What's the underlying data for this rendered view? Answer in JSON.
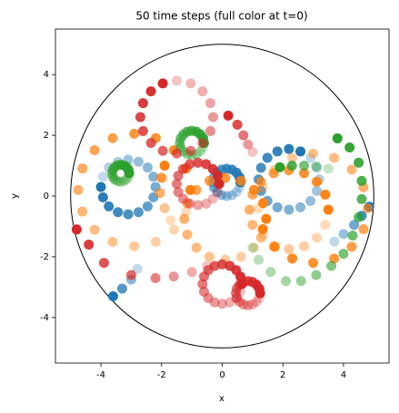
{
  "chart_data": {
    "type": "scatter",
    "title": "50 time steps (full color at t=0)",
    "x_label": "x",
    "y_label": "y",
    "xlim": [
      -5.5,
      5.5
    ],
    "ylim": [
      -5.5,
      5.5
    ],
    "xticks": [
      -4,
      -2,
      0,
      2,
      4
    ],
    "yticks": [
      -4,
      -2,
      0,
      2,
      4
    ],
    "circle": {
      "x": 0,
      "y": 0,
      "r": 5,
      "color": "#000000"
    },
    "series": [
      {
        "color": "#1f77b4",
        "x": [
          -4.0,
          -3.93,
          -3.74,
          -3.44,
          -3.1,
          -2.76,
          -2.46,
          -2.27,
          -2.2,
          -2.27,
          -2.46,
          -2.76,
          -3.1,
          -3.44,
          -3.74,
          -3.93
        ],
        "y": [
          0.3,
          -0.04,
          -0.34,
          -0.53,
          -0.6,
          -0.53,
          -0.34,
          -0.04,
          0.3,
          0.64,
          0.94,
          1.13,
          1.2,
          1.13,
          0.94,
          0.64
        ]
      },
      {
        "color": "#1f77b4",
        "x": [
          2.58,
          2.2,
          1.82,
          1.49,
          1.28,
          1.2,
          1.28,
          1.49,
          1.82,
          2.2,
          2.58,
          2.91,
          3.12,
          3.2,
          3.12,
          2.91
        ],
        "y": [
          1.47,
          1.55,
          1.47,
          1.26,
          0.93,
          0.55,
          0.17,
          -0.16,
          -0.37,
          -0.45,
          -0.37,
          -0.16,
          0.17,
          0.55,
          0.93,
          1.26
        ]
      },
      {
        "color": "#1f77b4",
        "x": [
          0.6,
          0.57,
          0.47,
          0.32,
          0.15,
          -0.02,
          -0.17,
          -0.27,
          -0.3,
          -0.27,
          -0.17,
          -0.02,
          0.15,
          0.32,
          0.47,
          0.57
        ],
        "y": [
          0.45,
          0.62,
          0.77,
          0.87,
          0.9,
          0.87,
          0.77,
          0.62,
          0.45,
          0.28,
          0.13,
          0.03,
          0,
          0.03,
          0.13,
          0.28
        ]
      },
      {
        "color": "#1f77b4",
        "x": [
          -3.6,
          -3.3,
          -3.0,
          -2.8
        ],
        "y": [
          -3.3,
          -3.05,
          -2.75,
          -2.4
        ]
      },
      {
        "color": "#1f77b4",
        "x": [
          4.85,
          4.6,
          4.35,
          4.0,
          3.7
        ],
        "y": [
          -0.35,
          -0.65,
          -0.95,
          -1.25,
          -1.5
        ]
      },
      {
        "color": "#ff7f0e",
        "x": [
          -1.05,
          -1.19,
          -1.59,
          -2.19,
          -2.9,
          -3.61,
          -4.21,
          -4.61,
          -4.75,
          -4.61,
          -4.21,
          -3.61,
          -2.9,
          -2.19,
          -1.59,
          -1.19
        ],
        "y": [
          0.2,
          0.91,
          1.51,
          1.91,
          2.05,
          1.91,
          1.51,
          0.91,
          0.2,
          -0.51,
          -1.11,
          -1.51,
          -1.65,
          -1.51,
          -1.11,
          -0.51
        ]
      },
      {
        "color": "#ff7f0e",
        "x": [
          1.45,
          1.35,
          1.05,
          0.62,
          0.1,
          -0.42,
          -0.85,
          -1.15,
          -1.25,
          -1.15,
          -0.85,
          -0.42,
          0.1,
          0.62,
          1.05,
          1.35
        ],
        "y": [
          -0.75,
          -0.23,
          0.2,
          0.5,
          0.6,
          0.5,
          0.2,
          -0.23,
          -0.75,
          -1.27,
          -1.7,
          -2.0,
          -2.1,
          -2.0,
          -1.7,
          -1.27
        ]
      },
      {
        "color": "#ff7f0e",
        "x": [
          3.5,
          3.4,
          3.12,
          2.7,
          2.2,
          1.7,
          1.28,
          1.0,
          0.9,
          1.0,
          1.28,
          1.7,
          2.2,
          2.7,
          3.12,
          3.4
        ],
        "y": [
          -0.45,
          0.05,
          0.47,
          0.75,
          0.85,
          0.75,
          0.47,
          0.05,
          -0.45,
          -0.95,
          -1.37,
          -1.65,
          -1.75,
          -1.65,
          -1.37,
          -0.95
        ]
      },
      {
        "color": "#ff7f0e",
        "x": [
          1.34,
          1.73,
          2.31,
          3.0,
          3.69,
          4.27,
          4.66,
          4.8,
          4.66,
          4.27,
          3.69,
          3.0,
          2.31,
          1.73,
          1.34,
          1.2
        ],
        "y": [
          -1.09,
          -1.67,
          -2.06,
          -2.2,
          -2.06,
          -1.67,
          -1.09,
          -0.4,
          0.29,
          0.87,
          1.26,
          1.4,
          1.26,
          0.87,
          0.29,
          -0.4
        ]
      },
      {
        "color": "#ff7f0e",
        "x": [
          -1.9,
          -2.0,
          -2.05,
          -1.9,
          -1.7
        ],
        "y": [
          1.0,
          0.6,
          0.1,
          -0.4,
          -0.8
        ]
      },
      {
        "color": "#2ca02c",
        "x": [
          3.8,
          4.2,
          4.5,
          4.6,
          4.6,
          4.5,
          4.3,
          4.0,
          3.6,
          3.1,
          2.6,
          2.1,
          1.6,
          1.2,
          1.0
        ],
        "y": [
          1.9,
          1.6,
          1.1,
          0.5,
          -0.1,
          -0.7,
          -1.3,
          -1.9,
          -2.3,
          -2.6,
          -2.8,
          -2.8,
          -2.5,
          -2.1,
          -1.7
        ]
      },
      {
        "color": "#2ca02c",
        "x": [
          1.9,
          2.3,
          2.7,
          3.1,
          3.5
        ],
        "y": [
          0.95,
          1.0,
          1.0,
          0.98,
          0.9
        ]
      },
      {
        "color": "#2ca02c",
        "x": [
          -0.6,
          -0.63,
          -0.72,
          -0.85,
          -1.0,
          -1.15,
          -1.28,
          -1.37,
          -1.4,
          -1.37,
          -1.28,
          -1.15,
          -1.0,
          -0.85,
          -0.72,
          -0.63
        ],
        "y": [
          1.75,
          1.9,
          2.03,
          2.12,
          2.15,
          2.12,
          2.03,
          1.9,
          1.75,
          1.6,
          1.47,
          1.38,
          1.35,
          1.38,
          1.47,
          1.6
        ]
      },
      {
        "color": "#2ca02c",
        "x": [
          -3.07,
          -3.09,
          -3.15,
          -3.24,
          -3.35,
          -3.46,
          -3.55,
          -3.61,
          -3.63,
          -3.61,
          -3.55,
          -3.46,
          -3.35,
          -3.24,
          -3.15,
          -3.09
        ],
        "y": [
          0.75,
          0.86,
          0.95,
          1.01,
          1.03,
          1.01,
          0.95,
          0.86,
          0.75,
          0.64,
          0.55,
          0.49,
          0.47,
          0.49,
          0.55,
          0.64
        ]
      },
      {
        "color": "#d62728",
        "x": [
          -1.96,
          -2.35,
          -2.61,
          -2.7,
          -2.61,
          -2.35,
          -1.96,
          -1.5,
          -1.04,
          -0.65,
          -0.39,
          -0.3,
          -0.39,
          -0.65,
          -1.04,
          -1.5
        ],
        "y": [
          3.71,
          3.45,
          3.06,
          2.6,
          2.14,
          1.75,
          1.49,
          1.4,
          1.49,
          1.75,
          2.14,
          2.6,
          3.06,
          3.45,
          3.71,
          3.8
        ]
      },
      {
        "color": "#d62728",
        "x": [
          -0.1,
          -0.15,
          -0.31,
          -0.53,
          -0.8,
          -1.07,
          -1.29,
          -1.45,
          -1.5,
          -1.45,
          -1.29,
          -1.07,
          -0.8,
          -0.53,
          -0.31,
          -0.15
        ],
        "y": [
          0.4,
          0.67,
          0.89,
          1.05,
          1.1,
          1.05,
          0.89,
          0.67,
          0.4,
          0.13,
          -0.09,
          -0.25,
          -0.3,
          -0.25,
          -0.09,
          0.13
        ]
      },
      {
        "color": "#d62728",
        "x": [
          0.65,
          0.6,
          0.46,
          0.25,
          0,
          -0.25,
          -0.46,
          -0.6,
          -0.65,
          -0.6,
          -0.46,
          -0.25,
          0,
          0.25,
          0.46,
          0.6
        ],
        "y": [
          -2.9,
          -2.65,
          -2.44,
          -2.3,
          -2.25,
          -2.3,
          -2.44,
          -2.65,
          -2.9,
          -3.15,
          -3.36,
          -3.5,
          -3.55,
          -3.5,
          -3.36,
          -3.15
        ]
      },
      {
        "color": "#d62728",
        "x": [
          1.25,
          1.22,
          1.13,
          1.0,
          0.85,
          0.7,
          0.57,
          0.48,
          0.45,
          0.48,
          0.57,
          0.7,
          0.85,
          1.0,
          1.13,
          1.22
        ],
        "y": [
          -3.2,
          -3.05,
          -2.92,
          -2.83,
          -2.8,
          -2.83,
          -2.92,
          -3.05,
          -3.2,
          -3.35,
          -3.48,
          -3.57,
          -3.6,
          -3.57,
          -3.48,
          -3.35
        ]
      },
      {
        "color": "#d62728",
        "x": [
          -4.8,
          -4.4,
          -3.9,
          -3.0,
          -2.2,
          -1.6,
          -1.0,
          -0.5
        ],
        "y": [
          -1.1,
          -1.6,
          -2.2,
          -2.6,
          -2.7,
          -2.65,
          -2.5,
          -2.3
        ]
      },
      {
        "color": "#d62728",
        "x": [
          0.2,
          0.5,
          0.7,
          0.85,
          1.0
        ],
        "y": [
          2.65,
          2.35,
          2.0,
          1.7,
          1.45
        ]
      }
    ]
  }
}
